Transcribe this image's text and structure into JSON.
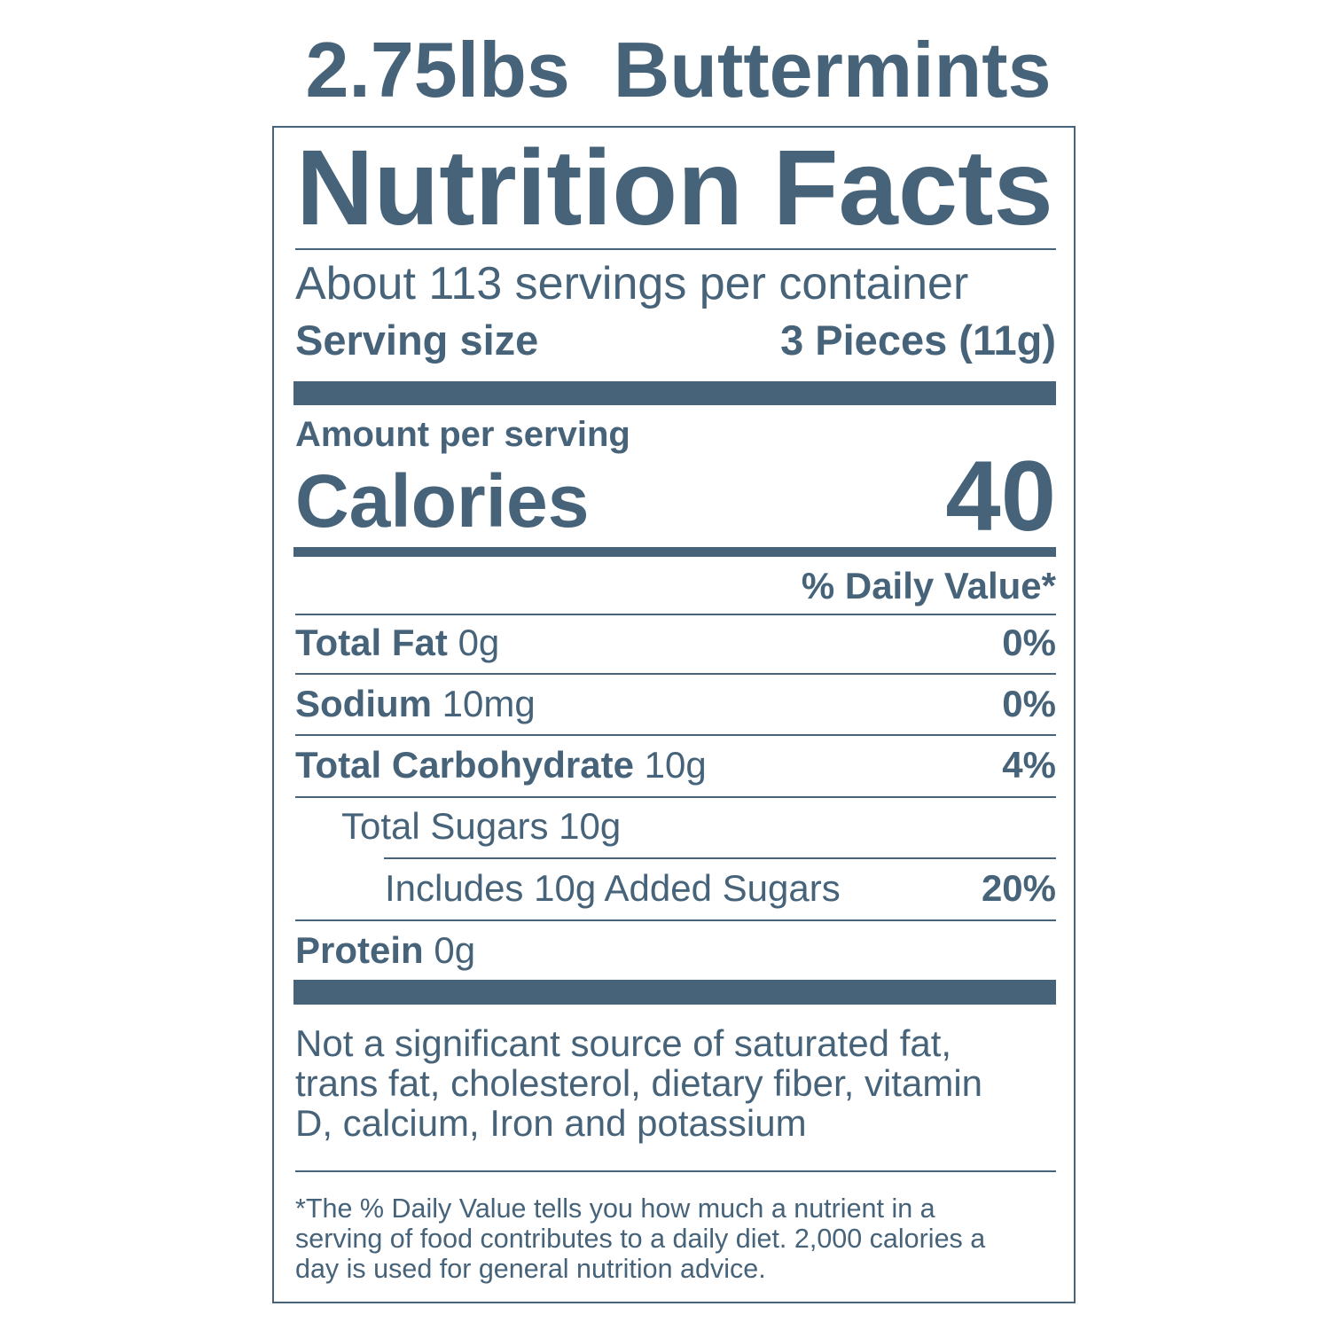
{
  "product_title": "2.75lbs  Buttermints",
  "label": {
    "heading": "Nutrition Facts",
    "servings_per_container": "About 113 servings per container",
    "serving_size_label": "Serving size",
    "serving_size_value": "3 Pieces (11g)",
    "amount_per_serving": "Amount per serving",
    "calories_label": "Calories",
    "calories_value": "40",
    "daily_value_header": "% Daily Value*",
    "nutrients": [
      {
        "name": "Total Fat",
        "amount": "0g",
        "dv": "0%"
      },
      {
        "name": "Sodium",
        "amount": "10mg",
        "dv": "0%"
      },
      {
        "name": "Total Carbohydrate",
        "amount": "10g",
        "dv": "4%"
      },
      {
        "name": "Total Sugars 10g",
        "amount": "",
        "dv": ""
      },
      {
        "name": "Includes 10g Added Sugars",
        "amount": "",
        "dv": "20%"
      },
      {
        "name": "Protein",
        "amount": "0g",
        "dv": ""
      }
    ],
    "not_significant": [
      "Not a significant source of saturated fat,",
      "trans fat, cholesterol, dietary fiber, vitamin",
      "D, calcium, Iron and potassium"
    ],
    "footnote": [
      "*The % Daily Value tells you how much a nutrient in a",
      "serving of food contributes to a daily diet. 2,000 calories a",
      "day is used for general nutrition advice."
    ]
  },
  "colors": {
    "ink": "#46637a",
    "background": "#ffffff"
  }
}
